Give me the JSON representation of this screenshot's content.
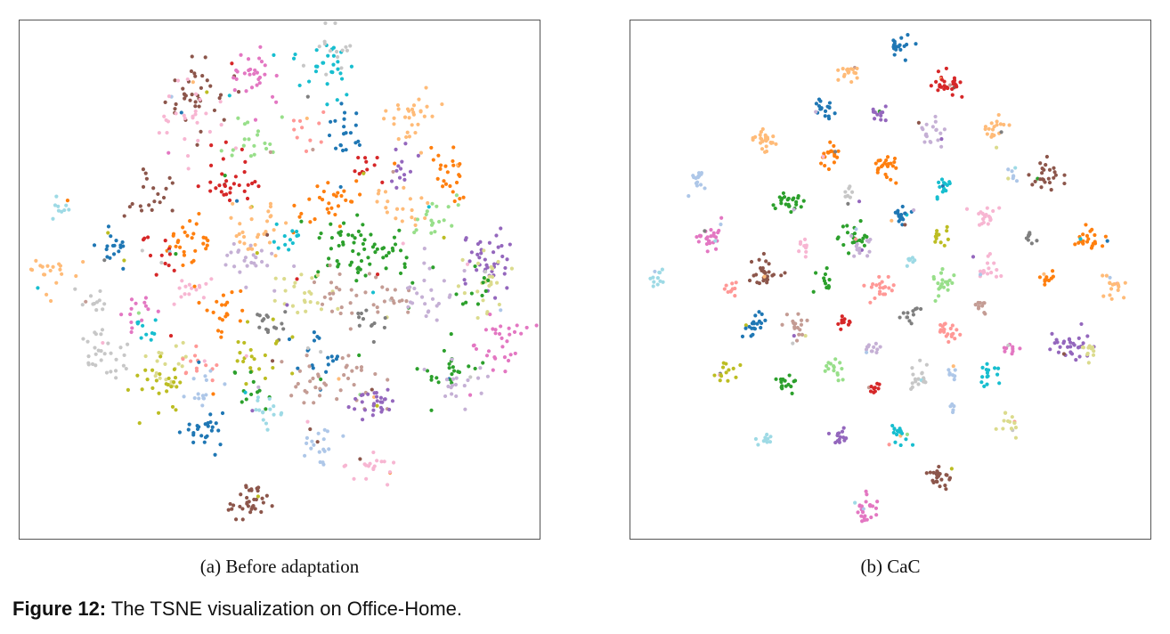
{
  "figure": {
    "label": "Figure 12:",
    "caption": "The TSNE visualization on Office-Home."
  },
  "palette": [
    "#1f77b4",
    "#ff7f0e",
    "#2ca02c",
    "#d62728",
    "#9467bd",
    "#8c564b",
    "#e377c2",
    "#7f7f7f",
    "#bcbd22",
    "#17becf",
    "#aec7e8",
    "#ffbb78",
    "#98df8a",
    "#ff9896",
    "#c5b0d5",
    "#c49c94",
    "#f7b6d2",
    "#c7c7c7",
    "#dbdb8d",
    "#9edae5"
  ],
  "chart_data": [
    {
      "type": "scatter",
      "subcaption": "(a) Before adaptation",
      "xlim": [
        0,
        100
      ],
      "ylim": [
        0,
        100
      ],
      "grid": false,
      "clusters": [
        {
          "x": 34,
          "y": 86,
          "color": "#8c564b",
          "spread": 3.5,
          "n": 40
        },
        {
          "x": 33,
          "y": 81,
          "color": "#f7b6d2",
          "spread": 3.5,
          "n": 30
        },
        {
          "x": 44,
          "y": 90,
          "color": "#e377c2",
          "spread": 3,
          "n": 30
        },
        {
          "x": 59,
          "y": 91,
          "color": "#17becf",
          "spread": 3,
          "n": 30
        },
        {
          "x": 61,
          "y": 94,
          "color": "#c7c7c7",
          "spread": 2.5,
          "n": 15
        },
        {
          "x": 76,
          "y": 81,
          "color": "#ffbb78",
          "spread": 3,
          "n": 30
        },
        {
          "x": 63,
          "y": 78,
          "color": "#1f77b4",
          "spread": 2,
          "n": 20
        },
        {
          "x": 66,
          "y": 72,
          "color": "#d62728",
          "spread": 2,
          "n": 12
        },
        {
          "x": 55,
          "y": 78,
          "color": "#ff9896",
          "spread": 2,
          "n": 12
        },
        {
          "x": 74,
          "y": 72,
          "color": "#9467bd",
          "spread": 2,
          "n": 15
        },
        {
          "x": 83,
          "y": 70,
          "color": "#ff7f0e",
          "spread": 2,
          "n": 25
        },
        {
          "x": 40,
          "y": 69,
          "color": "#d62728",
          "spread": 2.5,
          "n": 35
        },
        {
          "x": 45,
          "y": 76,
          "color": "#98df8a",
          "spread": 2.5,
          "n": 20
        },
        {
          "x": 25,
          "y": 66,
          "color": "#8c564b",
          "spread": 2.5,
          "n": 20
        },
        {
          "x": 8,
          "y": 65,
          "color": "#9edae5",
          "spread": 1.5,
          "n": 10
        },
        {
          "x": 59,
          "y": 65,
          "color": "#ff7f0e",
          "spread": 3,
          "n": 30
        },
        {
          "x": 74,
          "y": 64,
          "color": "#ffbb78",
          "spread": 2.5,
          "n": 20
        },
        {
          "x": 80,
          "y": 61,
          "color": "#98df8a",
          "spread": 2.5,
          "n": 20
        },
        {
          "x": 32,
          "y": 57,
          "color": "#ff7f0e",
          "spread": 2.5,
          "n": 30
        },
        {
          "x": 28,
          "y": 56,
          "color": "#d62728",
          "spread": 2,
          "n": 15
        },
        {
          "x": 18,
          "y": 56,
          "color": "#1f77b4",
          "spread": 2,
          "n": 20
        },
        {
          "x": 45,
          "y": 60,
          "color": "#ffbb78",
          "spread": 3,
          "n": 30
        },
        {
          "x": 52,
          "y": 58,
          "color": "#17becf",
          "spread": 1.5,
          "n": 12
        },
        {
          "x": 63,
          "y": 57,
          "color": "#2ca02c",
          "spread": 4,
          "n": 45
        },
        {
          "x": 70,
          "y": 55,
          "color": "#2ca02c",
          "spread": 3,
          "n": 25
        },
        {
          "x": 91,
          "y": 53,
          "color": "#9467bd",
          "spread": 3,
          "n": 40
        },
        {
          "x": 89,
          "y": 50,
          "color": "#dbdb8d",
          "spread": 3,
          "n": 25
        },
        {
          "x": 88,
          "y": 48,
          "color": "#2ca02c",
          "spread": 2,
          "n": 12
        },
        {
          "x": 6,
          "y": 51,
          "color": "#ffbb78",
          "spread": 2,
          "n": 20
        },
        {
          "x": 44,
          "y": 53,
          "color": "#c5b0d5",
          "spread": 3,
          "n": 25
        },
        {
          "x": 33,
          "y": 48,
          "color": "#f7b6d2",
          "spread": 2,
          "n": 15
        },
        {
          "x": 14,
          "y": 46,
          "color": "#c7c7c7",
          "spread": 1.5,
          "n": 12
        },
        {
          "x": 54,
          "y": 48,
          "color": "#dbdb8d",
          "spread": 3,
          "n": 25
        },
        {
          "x": 61,
          "y": 46,
          "color": "#c49c94",
          "spread": 2.5,
          "n": 20
        },
        {
          "x": 71,
          "y": 47,
          "color": "#c49c94",
          "spread": 2.5,
          "n": 20
        },
        {
          "x": 79,
          "y": 47,
          "color": "#c5b0d5",
          "spread": 2.5,
          "n": 25
        },
        {
          "x": 40,
          "y": 44,
          "color": "#ff7f0e",
          "spread": 2,
          "n": 20
        },
        {
          "x": 23,
          "y": 43,
          "color": "#e377c2",
          "spread": 2,
          "n": 15
        },
        {
          "x": 24,
          "y": 40,
          "color": "#17becf",
          "spread": 1.5,
          "n": 10
        },
        {
          "x": 48,
          "y": 42,
          "color": "#7f7f7f",
          "spread": 2,
          "n": 15
        },
        {
          "x": 68,
          "y": 41,
          "color": "#7f7f7f",
          "spread": 2,
          "n": 12
        },
        {
          "x": 93,
          "y": 38,
          "color": "#e377c2",
          "spread": 2.5,
          "n": 30
        },
        {
          "x": 16,
          "y": 35,
          "color": "#c7c7c7",
          "spread": 2.5,
          "n": 30
        },
        {
          "x": 29,
          "y": 35,
          "color": "#dbdb8d",
          "spread": 3,
          "n": 20
        },
        {
          "x": 35,
          "y": 34,
          "color": "#ff9896",
          "spread": 2,
          "n": 15
        },
        {
          "x": 46,
          "y": 35,
          "color": "#bcbd22",
          "spread": 3,
          "n": 25
        },
        {
          "x": 57,
          "y": 35,
          "color": "#1f77b4",
          "spread": 2.5,
          "n": 20
        },
        {
          "x": 64,
          "y": 31,
          "color": "#c49c94",
          "spread": 3,
          "n": 25
        },
        {
          "x": 82,
          "y": 32,
          "color": "#2ca02c",
          "spread": 2.5,
          "n": 25
        },
        {
          "x": 85,
          "y": 30,
          "color": "#c5b0d5",
          "spread": 2.5,
          "n": 20
        },
        {
          "x": 27,
          "y": 29,
          "color": "#bcbd22",
          "spread": 2.5,
          "n": 25
        },
        {
          "x": 44,
          "y": 29,
          "color": "#2ca02c",
          "spread": 2,
          "n": 15
        },
        {
          "x": 35,
          "y": 29,
          "color": "#aec7e8",
          "spread": 2,
          "n": 15
        },
        {
          "x": 55,
          "y": 30,
          "color": "#c49c94",
          "spread": 2.5,
          "n": 20
        },
        {
          "x": 68,
          "y": 26,
          "color": "#9467bd",
          "spread": 2,
          "n": 30
        },
        {
          "x": 48,
          "y": 24,
          "color": "#9edae5",
          "spread": 2,
          "n": 15
        },
        {
          "x": 35,
          "y": 21,
          "color": "#1f77b4",
          "spread": 2,
          "n": 25
        },
        {
          "x": 57,
          "y": 18,
          "color": "#aec7e8",
          "spread": 2,
          "n": 20
        },
        {
          "x": 68,
          "y": 14,
          "color": "#f7b6d2",
          "spread": 2,
          "n": 20
        },
        {
          "x": 44,
          "y": 7,
          "color": "#8c564b",
          "spread": 2,
          "n": 35
        }
      ]
    },
    {
      "type": "scatter",
      "subcaption": "(b) CaC",
      "xlim": [
        0,
        100
      ],
      "ylim": [
        0,
        100
      ],
      "grid": false,
      "clusters": [
        {
          "x": 52,
          "y": 95,
          "color": "#1f77b4",
          "spread": 1,
          "n": 18
        },
        {
          "x": 42,
          "y": 90,
          "color": "#ffbb78",
          "spread": 1,
          "n": 18
        },
        {
          "x": 61,
          "y": 88,
          "color": "#d62728",
          "spread": 1.2,
          "n": 30
        },
        {
          "x": 37,
          "y": 83,
          "color": "#1f77b4",
          "spread": 1,
          "n": 18
        },
        {
          "x": 48,
          "y": 82,
          "color": "#9467bd",
          "spread": 0.8,
          "n": 12
        },
        {
          "x": 58,
          "y": 78,
          "color": "#c5b0d5",
          "spread": 1.5,
          "n": 20
        },
        {
          "x": 70,
          "y": 79,
          "color": "#ffbb78",
          "spread": 1.2,
          "n": 20
        },
        {
          "x": 26,
          "y": 77,
          "color": "#ffbb78",
          "spread": 1.3,
          "n": 25
        },
        {
          "x": 38,
          "y": 74,
          "color": "#ff7f0e",
          "spread": 1.2,
          "n": 20
        },
        {
          "x": 49,
          "y": 72,
          "color": "#ff7f0e",
          "spread": 1.3,
          "n": 25
        },
        {
          "x": 13,
          "y": 69,
          "color": "#aec7e8",
          "spread": 1,
          "n": 15
        },
        {
          "x": 60,
          "y": 68,
          "color": "#17becf",
          "spread": 1,
          "n": 15
        },
        {
          "x": 73,
          "y": 70,
          "color": "#aec7e8",
          "spread": 0.8,
          "n": 8
        },
        {
          "x": 80,
          "y": 70,
          "color": "#8c564b",
          "spread": 1.4,
          "n": 25
        },
        {
          "x": 31,
          "y": 65,
          "color": "#2ca02c",
          "spread": 1.3,
          "n": 25
        },
        {
          "x": 42,
          "y": 66,
          "color": "#c7c7c7",
          "spread": 0.8,
          "n": 10
        },
        {
          "x": 52,
          "y": 62,
          "color": "#1f77b4",
          "spread": 1.2,
          "n": 20
        },
        {
          "x": 68,
          "y": 62,
          "color": "#f7b6d2",
          "spread": 1.2,
          "n": 20
        },
        {
          "x": 15,
          "y": 58,
          "color": "#e377c2",
          "spread": 1.4,
          "n": 30
        },
        {
          "x": 43,
          "y": 58,
          "color": "#2ca02c",
          "spread": 1.4,
          "n": 25
        },
        {
          "x": 45,
          "y": 56,
          "color": "#c5b0d5",
          "spread": 1.2,
          "n": 15
        },
        {
          "x": 60,
          "y": 58,
          "color": "#bcbd22",
          "spread": 0.9,
          "n": 12
        },
        {
          "x": 77,
          "y": 58,
          "color": "#7f7f7f",
          "spread": 0.7,
          "n": 8
        },
        {
          "x": 88,
          "y": 58,
          "color": "#ff7f0e",
          "spread": 1.3,
          "n": 25
        },
        {
          "x": 33,
          "y": 56,
          "color": "#f7b6d2",
          "spread": 0.9,
          "n": 10
        },
        {
          "x": 54,
          "y": 54,
          "color": "#9edae5",
          "spread": 0.7,
          "n": 8
        },
        {
          "x": 5,
          "y": 50,
          "color": "#9edae5",
          "spread": 0.9,
          "n": 12
        },
        {
          "x": 26,
          "y": 51,
          "color": "#8c564b",
          "spread": 1.5,
          "n": 30
        },
        {
          "x": 37,
          "y": 50,
          "color": "#2ca02c",
          "spread": 0.9,
          "n": 12
        },
        {
          "x": 48,
          "y": 48,
          "color": "#ff9896",
          "spread": 1.3,
          "n": 20
        },
        {
          "x": 60,
          "y": 49,
          "color": "#98df8a",
          "spread": 1.2,
          "n": 20
        },
        {
          "x": 69,
          "y": 52,
          "color": "#f7b6d2",
          "spread": 1.2,
          "n": 18
        },
        {
          "x": 80,
          "y": 50,
          "color": "#ff7f0e",
          "spread": 0.8,
          "n": 12
        },
        {
          "x": 93,
          "y": 49,
          "color": "#ffbb78",
          "spread": 1.2,
          "n": 18
        },
        {
          "x": 19,
          "y": 48,
          "color": "#ff9896",
          "spread": 0.8,
          "n": 10
        },
        {
          "x": 68,
          "y": 45,
          "color": "#c49c94",
          "spread": 0.9,
          "n": 10
        },
        {
          "x": 54,
          "y": 43,
          "color": "#7f7f7f",
          "spread": 0.9,
          "n": 12
        },
        {
          "x": 24,
          "y": 41,
          "color": "#1f77b4",
          "spread": 1.3,
          "n": 20
        },
        {
          "x": 32,
          "y": 41,
          "color": "#c49c94",
          "spread": 1.3,
          "n": 20
        },
        {
          "x": 41,
          "y": 42,
          "color": "#d62728",
          "spread": 0.7,
          "n": 10
        },
        {
          "x": 61,
          "y": 40,
          "color": "#ff9896",
          "spread": 1.2,
          "n": 20
        },
        {
          "x": 73,
          "y": 37,
          "color": "#e377c2",
          "spread": 0.8,
          "n": 10
        },
        {
          "x": 85,
          "y": 37,
          "color": "#9467bd",
          "spread": 1.6,
          "n": 35
        },
        {
          "x": 88,
          "y": 37,
          "color": "#dbdb8d",
          "spread": 1.2,
          "n": 12
        },
        {
          "x": 47,
          "y": 37,
          "color": "#c5b0d5",
          "spread": 1,
          "n": 12
        },
        {
          "x": 18,
          "y": 32,
          "color": "#bcbd22",
          "spread": 1.1,
          "n": 15
        },
        {
          "x": 39,
          "y": 33,
          "color": "#98df8a",
          "spread": 1.1,
          "n": 15
        },
        {
          "x": 55,
          "y": 31,
          "color": "#c7c7c7",
          "spread": 1.3,
          "n": 20
        },
        {
          "x": 62,
          "y": 32,
          "color": "#aec7e8",
          "spread": 0.7,
          "n": 8
        },
        {
          "x": 69,
          "y": 32,
          "color": "#17becf",
          "spread": 1,
          "n": 15
        },
        {
          "x": 30,
          "y": 30,
          "color": "#2ca02c",
          "spread": 1,
          "n": 15
        },
        {
          "x": 47,
          "y": 29,
          "color": "#d62728",
          "spread": 0.8,
          "n": 10
        },
        {
          "x": 62,
          "y": 25,
          "color": "#aec7e8",
          "spread": 0.5,
          "n": 5
        },
        {
          "x": 73,
          "y": 22,
          "color": "#dbdb8d",
          "spread": 1.2,
          "n": 15
        },
        {
          "x": 26,
          "y": 19,
          "color": "#9edae5",
          "spread": 0.9,
          "n": 10
        },
        {
          "x": 40,
          "y": 20,
          "color": "#9467bd",
          "spread": 1.1,
          "n": 15
        },
        {
          "x": 52,
          "y": 20,
          "color": "#17becf",
          "spread": 1.1,
          "n": 18
        },
        {
          "x": 60,
          "y": 12,
          "color": "#8c564b",
          "spread": 1.3,
          "n": 25
        },
        {
          "x": 45,
          "y": 6,
          "color": "#e377c2",
          "spread": 1.3,
          "n": 25
        }
      ]
    }
  ]
}
